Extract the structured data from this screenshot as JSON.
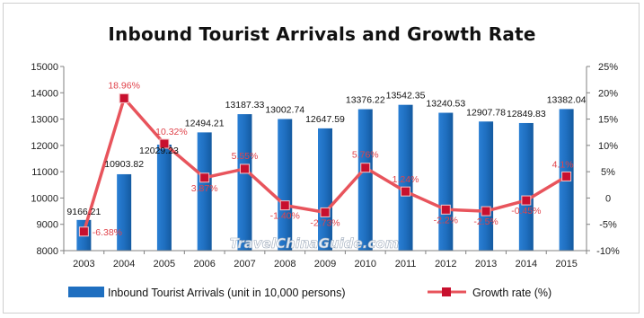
{
  "chart_data": {
    "type": "bar+line",
    "title": "Inbound Tourist Arrivals and Growth Rate",
    "categories": [
      "2003",
      "2004",
      "2005",
      "2006",
      "2007",
      "2008",
      "2009",
      "2010",
      "2011",
      "2012",
      "2013",
      "2014",
      "2015"
    ],
    "series": [
      {
        "name": "Inbound Tourist Arrivals (unit in 10,000 persons)",
        "type": "bar",
        "axis": "left",
        "color": "#1f6fc0",
        "values": [
          9166.21,
          10903.82,
          12029.23,
          12494.21,
          13187.33,
          13002.74,
          12647.59,
          13376.22,
          13542.35,
          13240.53,
          12907.78,
          12849.83,
          13382.04
        ],
        "labels": [
          "9166.21",
          "10903.82",
          "12029.23",
          "12494.21",
          "13187.33",
          "13002.74",
          "12647.59",
          "13376.22",
          "13542.35",
          "13240.53",
          "12907.78",
          "12849.83",
          "13382.04"
        ]
      },
      {
        "name": "Growth rate (%)",
        "type": "line",
        "axis": "right",
        "color": "#e8545c",
        "marker_color": "#c8102e",
        "values": [
          -6.38,
          18.96,
          10.32,
          3.87,
          5.55,
          -1.4,
          -2.73,
          5.76,
          1.24,
          -2.2,
          -2.5,
          -0.45,
          4.1
        ],
        "labels": [
          "-6.38%",
          "18.96%",
          "10.32%",
          "3.87%",
          "5.55%",
          "-1.40%",
          "-2.73%",
          "5.76%",
          "1.24%",
          "-2.2%",
          "-2.5%",
          "-0.45%",
          "4.1%"
        ]
      }
    ],
    "y_left": {
      "min": 8000,
      "max": 15000,
      "ticks": [
        "8000",
        "9000",
        "10000",
        "11000",
        "12000",
        "13000",
        "14000",
        "15000"
      ]
    },
    "y_right": {
      "min": -10,
      "max": 25,
      "ticks": [
        "-10%",
        "-5%",
        "0",
        "5%",
        "10%",
        "15%",
        "20%",
        "25%"
      ]
    },
    "grid": false,
    "legend_position": "bottom",
    "watermark": "TravelChinaGuide.com"
  }
}
